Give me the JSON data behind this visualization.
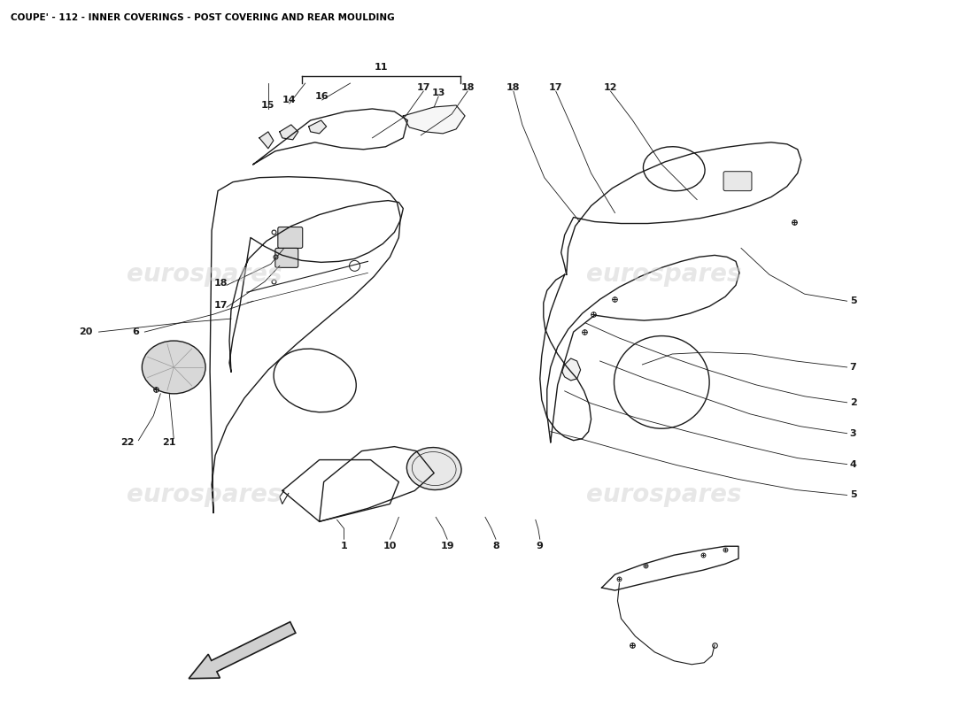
{
  "title": "COUPE' - 112 - INNER COVERINGS - POST COVERING AND REAR MOULDING",
  "title_fontsize": 7.5,
  "title_color": "#000000",
  "background_color": "#ffffff",
  "watermark_text": "eurospares",
  "fig_width": 11.0,
  "fig_height": 8.0,
  "line_color": "#1a1a1a",
  "lw": 1.0,
  "wm_color": "#d0d0d0",
  "wm_alpha": 0.5,
  "wm_fontsize": 20
}
